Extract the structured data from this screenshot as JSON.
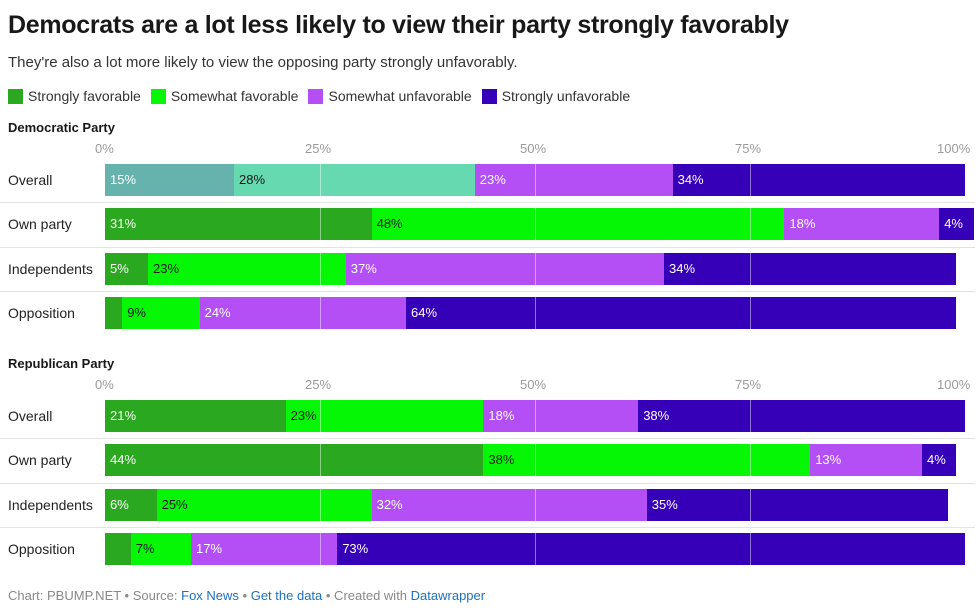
{
  "title": "Democrats are a lot less likely to view their party strongly favorably",
  "subtitle": "They're also a lot more likely to view the opposing party strongly unfavorably.",
  "legend": [
    {
      "label": "Strongly favorable",
      "color": "#2aa81f"
    },
    {
      "label": "Somewhat favorable",
      "color": "#06f706"
    },
    {
      "label": "Somewhat unfavorable",
      "color": "#b44ef5"
    },
    {
      "label": "Strongly unfavorable",
      "color": "#3500b8"
    }
  ],
  "footer": {
    "prefix": "Chart: PBUMP.NET • Source: ",
    "source": "Fox News",
    "sep1": " • ",
    "data_link": "Get the data",
    "sep2": " • Created with ",
    "tool": "Datawrapper"
  },
  "chart_data": [
    {
      "type": "bar",
      "stacked": true,
      "orientation": "horizontal",
      "title": "Democratic Party",
      "xlim": [
        0,
        100
      ],
      "xticks": [
        "0%",
        "25%",
        "50%",
        "75%",
        "100%"
      ],
      "categories": [
        "Overall",
        "Own party",
        "Independents",
        "Opposition"
      ],
      "series": [
        {
          "name": "Strongly favorable",
          "values": [
            15,
            31,
            5,
            2
          ]
        },
        {
          "name": "Somewhat favorable",
          "values": [
            28,
            48,
            23,
            9
          ]
        },
        {
          "name": "Somewhat unfavorable",
          "values": [
            23,
            18,
            37,
            24
          ]
        },
        {
          "name": "Strongly unfavorable",
          "values": [
            34,
            4,
            34,
            64
          ]
        }
      ],
      "overall_colors": [
        "#66b3ae",
        "#66d9b1",
        "#b44ef5",
        "#3500b8"
      ]
    },
    {
      "type": "bar",
      "stacked": true,
      "orientation": "horizontal",
      "title": "Republican Party",
      "xlim": [
        0,
        100
      ],
      "xticks": [
        "0%",
        "25%",
        "50%",
        "75%",
        "100%"
      ],
      "categories": [
        "Overall",
        "Own party",
        "Independents",
        "Opposition"
      ],
      "series": [
        {
          "name": "Strongly favorable",
          "values": [
            21,
            44,
            6,
            3
          ]
        },
        {
          "name": "Somewhat favorable",
          "values": [
            23,
            38,
            25,
            7
          ]
        },
        {
          "name": "Somewhat unfavorable",
          "values": [
            18,
            13,
            32,
            17
          ]
        },
        {
          "name": "Strongly unfavorable",
          "values": [
            38,
            4,
            35,
            73
          ]
        }
      ]
    }
  ]
}
